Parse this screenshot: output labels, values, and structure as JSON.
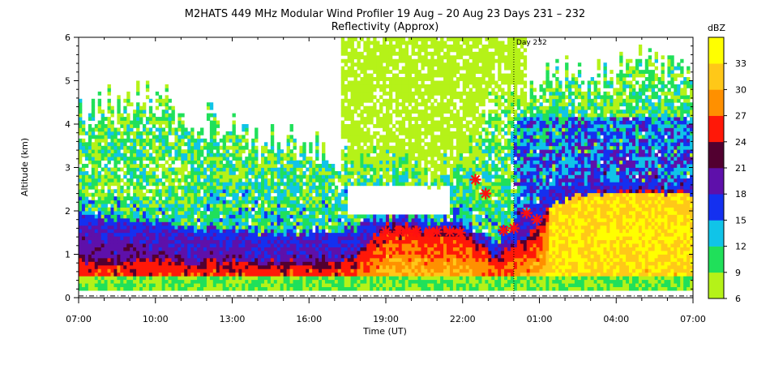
{
  "chart_data": {
    "type": "heatmap",
    "title": "M2HATS 449 MHz Modular Wind Profiler  19 Aug – 20 Aug 23 Days 231 – 232",
    "subtitle": "Reflectivity (Approx)",
    "xlabel": "Time (UT)",
    "ylabel": "Altitude (km)",
    "x_ticks": [
      "07:00",
      "10:00",
      "13:00",
      "16:00",
      "19:00",
      "22:00",
      "01:00",
      "04:00",
      "07:00"
    ],
    "x_range_hours": [
      0,
      24
    ],
    "y_ticks": [
      "0",
      "1",
      "2",
      "3",
      "4",
      "5",
      "6"
    ],
    "ylim": [
      0,
      6
    ],
    "day_marker": {
      "label": "Day 232",
      "hour": 17
    },
    "colorbar": {
      "unit": "dBZ",
      "ticks": [
        "6",
        "9",
        "12",
        "15",
        "18",
        "21",
        "24",
        "27",
        "30",
        "33"
      ],
      "range": [
        6,
        36
      ],
      "colors": [
        "#b5f218",
        "#20e05a",
        "#10c4e8",
        "#1430f0",
        "#5e10aa",
        "#520030",
        "#ff1808",
        "#ff9000",
        "#ffc818",
        "#ffff00"
      ]
    },
    "markers": [
      {
        "hour": 12.0,
        "alt": 1.52
      },
      {
        "hour": 12.5,
        "alt": 1.52
      },
      {
        "hour": 12.8,
        "alt": 1.52
      },
      {
        "hour": 13.2,
        "alt": 1.52
      },
      {
        "hour": 13.7,
        "alt": 1.52
      },
      {
        "hour": 14.0,
        "alt": 1.52
      },
      {
        "hour": 14.5,
        "alt": 1.52
      },
      {
        "hour": 14.9,
        "alt": 1.5
      },
      {
        "hour": 15.5,
        "alt": 2.72
      },
      {
        "hour": 15.9,
        "alt": 2.4
      },
      {
        "hour": 16.6,
        "alt": 1.55
      },
      {
        "hour": 17.0,
        "alt": 1.6
      },
      {
        "hour": 17.5,
        "alt": 1.95
      },
      {
        "hour": 17.9,
        "alt": 1.8
      }
    ]
  }
}
